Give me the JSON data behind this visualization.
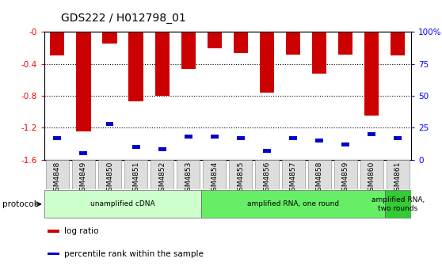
{
  "title": "GDS222 / H012798_01",
  "samples": [
    "GSM4848",
    "GSM4849",
    "GSM4850",
    "GSM4851",
    "GSM4852",
    "GSM4853",
    "GSM4854",
    "GSM4855",
    "GSM4856",
    "GSM4857",
    "GSM4858",
    "GSM4859",
    "GSM4860",
    "GSM4861"
  ],
  "log_ratios": [
    -0.29,
    -1.25,
    -0.15,
    -0.87,
    -0.8,
    -0.46,
    -0.21,
    -0.26,
    -0.76,
    -0.28,
    -0.52,
    -0.28,
    -1.05,
    -0.29
  ],
  "percentile_ranks": [
    17,
    5,
    28,
    10,
    8,
    18,
    18,
    17,
    7,
    17,
    15,
    12,
    20,
    17
  ],
  "ylim_left": [
    -1.6,
    0.0
  ],
  "left_yticks": [
    -1.6,
    -1.2,
    -0.8,
    -0.4,
    0.0
  ],
  "right_yticks": [
    0,
    25,
    50,
    75,
    100
  ],
  "right_yticklabels": [
    "0",
    "25",
    "50",
    "75",
    "100%"
  ],
  "bar_color": "#cc0000",
  "pct_color": "#0000cc",
  "bar_width": 0.55,
  "pct_bar_width": 0.3,
  "pct_bar_height": 0.05,
  "protocols": [
    {
      "label": "unamplified cDNA",
      "start": 0,
      "end": 6,
      "color": "#ccffcc"
    },
    {
      "label": "amplified RNA, one round",
      "start": 6,
      "end": 13,
      "color": "#66ee66"
    },
    {
      "label": "amplified RNA,\ntwo rounds",
      "start": 13,
      "end": 14,
      "color": "#33cc33"
    }
  ],
  "legend_items": [
    {
      "color": "#cc0000",
      "label": "log ratio"
    },
    {
      "color": "#0000cc",
      "label": "percentile rank within the sample"
    }
  ],
  "protocol_label": "protocol",
  "background_color": "#ffffff",
  "title_fontsize": 10,
  "tick_fontsize": 7.5,
  "bar_label_fontsize": 6.5
}
